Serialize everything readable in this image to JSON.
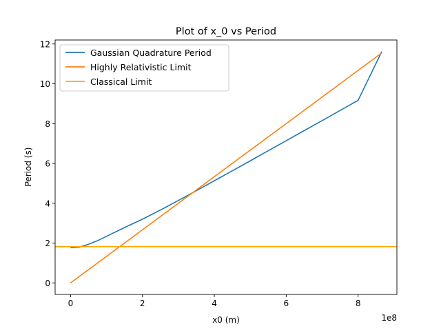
{
  "chart_data": {
    "type": "line",
    "title": "Plot of x_0 vs Period",
    "xlabel": "x0 (m)",
    "ylabel": "Period (s)",
    "x_offset_text": "1e8",
    "xlim": [
      -0.43,
      9.08
    ],
    "ylim": [
      -0.58,
      12.2
    ],
    "x_ticks": [
      0,
      2,
      4,
      6,
      8
    ],
    "y_ticks": [
      0,
      2,
      4,
      6,
      8,
      10,
      12
    ],
    "grid": false,
    "legend_position": "top-left",
    "series": [
      {
        "name": "Gaussian Quadrature Period",
        "color": "#1f77b4",
        "x": [
          0,
          0.25,
          0.5,
          0.75,
          1,
          1.5,
          2,
          2.5,
          3,
          3.5,
          4,
          4.5,
          5,
          5.5,
          6,
          6.5,
          7,
          7.5,
          8,
          8.66
        ],
        "y": [
          1.77,
          1.8,
          1.94,
          2.12,
          2.34,
          2.78,
          3.2,
          3.66,
          4.14,
          4.63,
          5.13,
          5.63,
          6.13,
          6.64,
          7.14,
          7.65,
          8.15,
          8.66,
          9.17,
          11.62
        ]
      },
      {
        "name": "Highly Relativistic Limit",
        "color": "#ff7f0e",
        "x": [
          0,
          8.66
        ],
        "y": [
          0,
          11.55
        ]
      },
      {
        "name": "Classical Limit",
        "color": "#ffa500",
        "x": [
          -0.43,
          9.08
        ],
        "y": [
          1.82,
          1.82
        ]
      }
    ]
  }
}
